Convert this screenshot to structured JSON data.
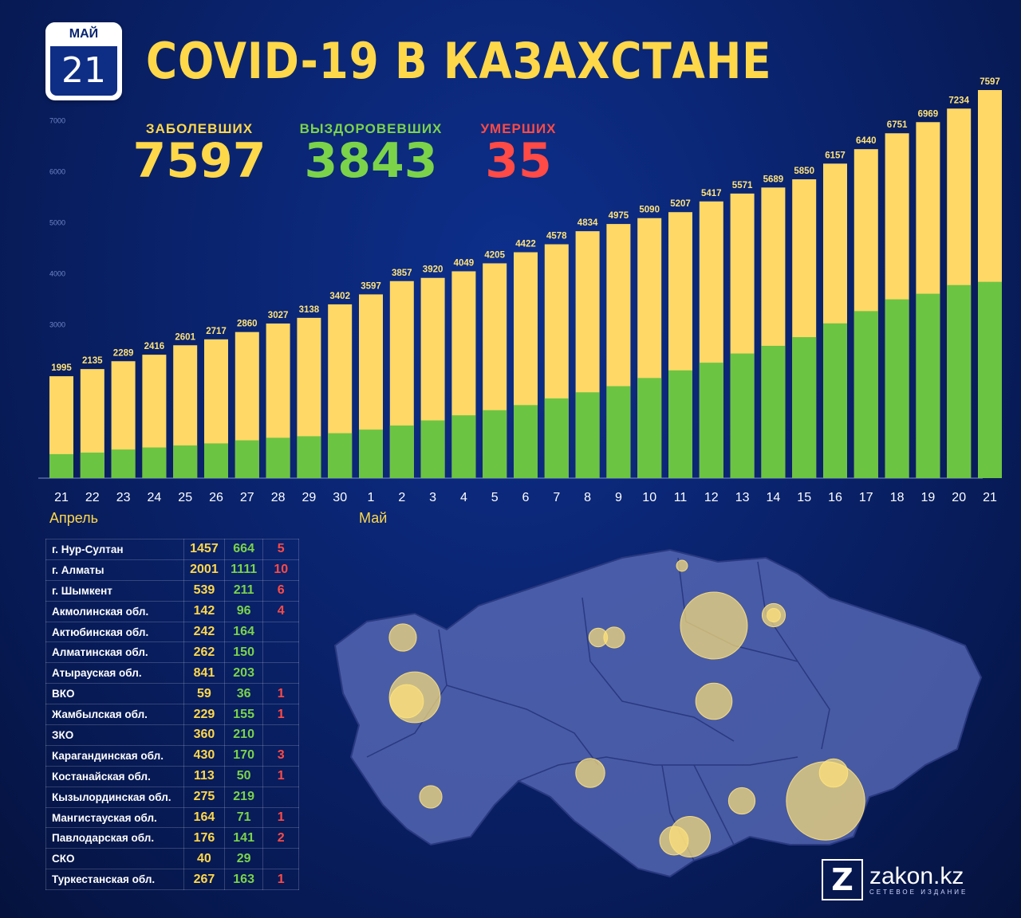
{
  "calendar": {
    "month": "МАЙ",
    "day": "21"
  },
  "title": "COVID-19 В КАЗАХСТАНЕ",
  "stats": {
    "cases_label": "ЗАБОЛЕВШИХ",
    "cases": "7597",
    "recovered_label": "ВЫЗДОРОВЕВШИХ",
    "recovered": "3843",
    "deaths_label": "УМЕРШИХ",
    "deaths": "35"
  },
  "colors": {
    "cases": "#ffd866",
    "recovered": "#6cc443",
    "deaths": "#ff4a45",
    "accent": "#ffd84a"
  },
  "chart_data": {
    "type": "bar",
    "categories": [
      "21",
      "22",
      "23",
      "24",
      "25",
      "26",
      "27",
      "28",
      "29",
      "30",
      "1",
      "2",
      "3",
      "4",
      "5",
      "6",
      "7",
      "8",
      "9",
      "10",
      "11",
      "12",
      "13",
      "14",
      "15",
      "16",
      "17",
      "18",
      "19",
      "20",
      "21"
    ],
    "month_labels": [
      {
        "label": "Апрель",
        "index": 0
      },
      {
        "label": "Май",
        "index": 10
      }
    ],
    "ylim": [
      0,
      7800
    ],
    "yticks": [
      3000,
      4000,
      5000,
      6000,
      7000
    ],
    "series": [
      {
        "name": "ЗАБОЛЕВШИХ",
        "values": [
          1995,
          2135,
          2289,
          2416,
          2601,
          2717,
          2860,
          3027,
          3138,
          3402,
          3597,
          3857,
          3920,
          4049,
          4205,
          4422,
          4578,
          4834,
          4975,
          5090,
          5207,
          5417,
          5571,
          5689,
          5850,
          6157,
          6440,
          6751,
          6969,
          7234,
          7597
        ]
      },
      {
        "name": "ВЫЗДОРОВЕВШИХ",
        "values": [
          470,
          500,
          560,
          600,
          640,
          680,
          740,
          790,
          820,
          880,
          950,
          1030,
          1130,
          1230,
          1330,
          1430,
          1560,
          1680,
          1800,
          1960,
          2110,
          2260,
          2440,
          2590,
          2760,
          3030,
          3270,
          3500,
          3610,
          3780,
          3843
        ]
      }
    ],
    "grid": false
  },
  "table": {
    "rows": [
      {
        "region": "г. Нур-Султан",
        "cases": "1457",
        "recovered": "664",
        "deaths": "5"
      },
      {
        "region": "г. Алматы",
        "cases": "2001",
        "recovered": "1111",
        "deaths": "10"
      },
      {
        "region": "г. Шымкент",
        "cases": "539",
        "recovered": "211",
        "deaths": "6"
      },
      {
        "region": "Акмолинская обл.",
        "cases": "142",
        "recovered": "96",
        "deaths": "4"
      },
      {
        "region": "Актюбинская обл.",
        "cases": "242",
        "recovered": "164",
        "deaths": ""
      },
      {
        "region": "Алматинская обл.",
        "cases": "262",
        "recovered": "150",
        "deaths": ""
      },
      {
        "region": "Атырауская обл.",
        "cases": "841",
        "recovered": "203",
        "deaths": ""
      },
      {
        "region": "ВКО",
        "cases": "59",
        "recovered": "36",
        "deaths": "1"
      },
      {
        "region": "Жамбылская обл.",
        "cases": "229",
        "recovered": "155",
        "deaths": "1"
      },
      {
        "region": "ЗКО",
        "cases": "360",
        "recovered": "210",
        "deaths": ""
      },
      {
        "region": "Карагандинская обл.",
        "cases": "430",
        "recovered": "170",
        "deaths": "3"
      },
      {
        "region": "Костанайская обл.",
        "cases": "113",
        "recovered": "50",
        "deaths": "1"
      },
      {
        "region": "Кызылординская обл.",
        "cases": "275",
        "recovered": "219",
        "deaths": ""
      },
      {
        "region": "Мангистауская обл.",
        "cases": "164",
        "recovered": "71",
        "deaths": "1"
      },
      {
        "region": "Павлодарская обл.",
        "cases": "176",
        "recovered": "141",
        "deaths": "2"
      },
      {
        "region": "СКО",
        "cases": "40",
        "recovered": "29",
        "deaths": ""
      },
      {
        "region": "Туркестанская обл.",
        "cases": "267",
        "recovered": "163",
        "deaths": "1"
      }
    ]
  },
  "map": {
    "bubbles": [
      {
        "region": "ЗКО",
        "cases": 360
      },
      {
        "region": "Атырауская обл.",
        "cases": 841
      },
      {
        "region": "Мангистауская обл.",
        "cases": 164
      },
      {
        "region": "Актюбинская обл.",
        "cases": 242
      },
      {
        "region": "Костанайская обл.",
        "cases": 113
      },
      {
        "region": "СКО",
        "cases": 40
      },
      {
        "region": "г. Нур-Султан",
        "cases": 1457
      },
      {
        "region": "Акмолинская обл.",
        "cases": 142
      },
      {
        "region": "Павлодарская обл.",
        "cases": 176
      },
      {
        "region": "Карагандинская обл.",
        "cases": 430
      },
      {
        "region": "Кызылординская обл.",
        "cases": 275
      },
      {
        "region": "Туркестанская обл.",
        "cases": 267
      },
      {
        "region": "г. Шымкент",
        "cases": 539
      },
      {
        "region": "Жамбылская обл.",
        "cases": 229
      },
      {
        "region": "Алматинская обл.",
        "cases": 262
      },
      {
        "region": "г. Алматы",
        "cases": 2001
      },
      {
        "region": "ВКО",
        "cases": 59
      }
    ]
  },
  "logo": {
    "name": "zakon.kz",
    "subtitle": "СЕТЕВОЕ ИЗДАНИЕ",
    "icon": "z-logo-icon",
    "letter": "Z"
  }
}
